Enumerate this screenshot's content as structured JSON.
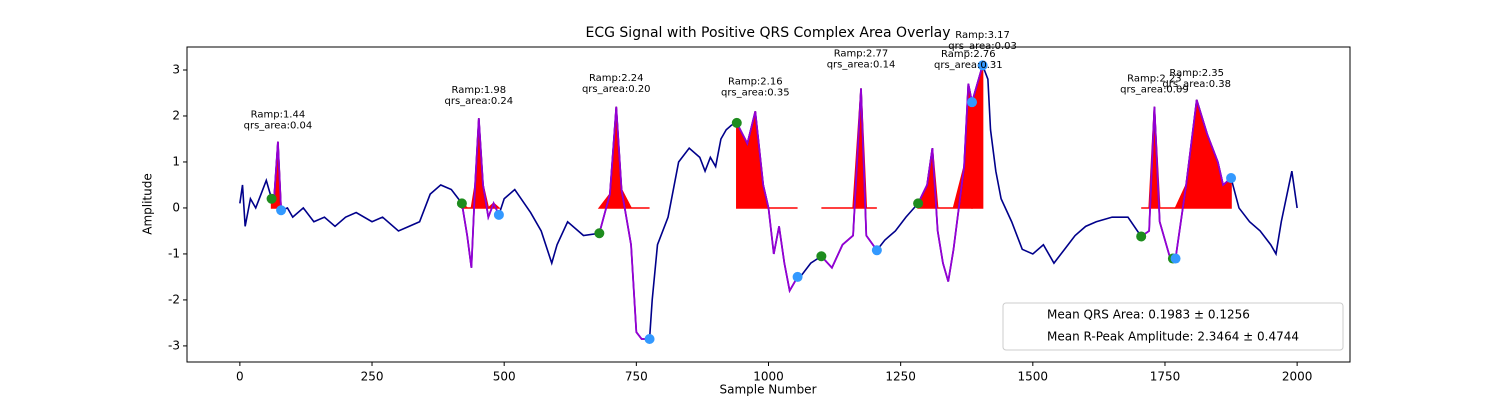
{
  "chart_data": {
    "type": "line",
    "title": "ECG Signal with Positive QRS Complex Area Overlay",
    "xlabel": "Sample Number",
    "ylabel": "Amplitude",
    "xlim": [
      -100,
      2100
    ],
    "ylim": [
      -3.35,
      3.5
    ],
    "xticks": [
      0,
      250,
      500,
      750,
      1000,
      1250,
      1500,
      1750,
      2000
    ],
    "yticks": [
      -3,
      -2,
      -1,
      0,
      1,
      2,
      3
    ],
    "color": "#00008b",
    "x": [
      0,
      5,
      10,
      20,
      30,
      40,
      50,
      60,
      65,
      72,
      78,
      90,
      100,
      120,
      140,
      160,
      180,
      200,
      220,
      250,
      270,
      300,
      320,
      340,
      360,
      380,
      400,
      420,
      430,
      438,
      445,
      452,
      460,
      470,
      480,
      490,
      500,
      520,
      550,
      570,
      590,
      600,
      620,
      650,
      680,
      700,
      712,
      722,
      740,
      750,
      760,
      775,
      780,
      790,
      810,
      830,
      850,
      870,
      880,
      890,
      900,
      910,
      920,
      930,
      940,
      960,
      975,
      990,
      1000,
      1010,
      1020,
      1030,
      1040,
      1055,
      1060,
      1080,
      1100,
      1120,
      1140,
      1160,
      1175,
      1185,
      1205,
      1220,
      1240,
      1260,
      1283,
      1300,
      1310,
      1320,
      1330,
      1340,
      1350,
      1370,
      1378,
      1385,
      1395,
      1405,
      1415,
      1420,
      1430,
      1440,
      1460,
      1480,
      1500,
      1520,
      1540,
      1560,
      1580,
      1600,
      1620,
      1650,
      1680,
      1705,
      1720,
      1730,
      1740,
      1760,
      1770,
      1790,
      1810,
      1830,
      1850,
      1860,
      1875,
      1890,
      1910,
      1930,
      1950,
      1960,
      1970,
      1990,
      2000
    ],
    "values": [
      0.1,
      0.5,
      -0.4,
      0.2,
      0.0,
      0.3,
      0.6,
      0.2,
      0.25,
      1.44,
      -0.05,
      0.0,
      -0.2,
      0.0,
      -0.3,
      -0.2,
      -0.4,
      -0.2,
      -0.1,
      -0.3,
      -0.2,
      -0.5,
      -0.4,
      -0.3,
      0.3,
      0.5,
      0.4,
      0.1,
      -0.6,
      -1.3,
      0.5,
      1.95,
      0.5,
      -0.2,
      0.1,
      -0.15,
      0.2,
      0.4,
      -0.1,
      -0.5,
      -1.2,
      -0.8,
      -0.3,
      -0.6,
      -0.55,
      0.3,
      2.2,
      0.4,
      -0.8,
      -2.7,
      -2.85,
      -2.85,
      -2.0,
      -0.8,
      -0.2,
      1.0,
      1.3,
      1.1,
      0.8,
      1.1,
      0.9,
      1.5,
      1.7,
      1.8,
      1.85,
      1.4,
      2.1,
      0.5,
      0.0,
      -1.0,
      -0.4,
      -1.2,
      -1.8,
      -1.5,
      -1.5,
      -1.2,
      -1.05,
      -1.3,
      -0.8,
      -0.6,
      2.6,
      -0.6,
      -0.92,
      -0.7,
      -0.5,
      -0.2,
      0.1,
      0.5,
      1.3,
      -0.5,
      -1.2,
      -1.6,
      -0.9,
      0.9,
      2.7,
      2.3,
      2.7,
      3.1,
      2.8,
      1.7,
      0.8,
      0.2,
      -0.3,
      -0.9,
      -1.0,
      -0.8,
      -1.2,
      -0.9,
      -0.6,
      -0.4,
      -0.3,
      -0.2,
      -0.2,
      -0.62,
      -0.5,
      2.2,
      -0.3,
      -1.1,
      -1.1,
      0.5,
      2.35,
      1.6,
      1.0,
      0.5,
      0.65,
      0.0,
      -0.3,
      -0.5,
      -0.8,
      -1.0,
      -0.3,
      0.8,
      0.0
    ],
    "qrs_color": "#9400d3",
    "fill_color": "#ff0000",
    "qrs_segments": [
      [
        60,
        78
      ],
      [
        420,
        490
      ],
      [
        680,
        775
      ],
      [
        940,
        1055
      ],
      [
        1100,
        1205
      ],
      [
        1283,
        1385
      ],
      [
        1385,
        1405
      ],
      [
        1705,
        1770
      ],
      [
        1770,
        1875
      ]
    ],
    "onsets": {
      "color": "#1e8c1e",
      "x": [
        60,
        420,
        680,
        940,
        1100,
        1283,
        1705,
        1765
      ],
      "values": [
        0.2,
        0.1,
        -0.55,
        1.85,
        -1.05,
        0.1,
        -0.62,
        -1.1
      ]
    },
    "offsets": {
      "color": "#3399ff",
      "x": [
        78,
        490,
        775,
        1055,
        1205,
        1385,
        1405,
        1770,
        1875
      ],
      "values": [
        -0.05,
        -0.15,
        -2.85,
        -1.5,
        -0.92,
        2.3,
        3.1,
        -1.1,
        0.65
      ]
    },
    "annotations": [
      {
        "x": 72,
        "y": 1.44,
        "lines": [
          "Ramp:1.44",
          "qrs_area:0.04"
        ]
      },
      {
        "x": 452,
        "y": 1.98,
        "lines": [
          "Ramp:1.98",
          "qrs_area:0.24"
        ]
      },
      {
        "x": 712,
        "y": 2.24,
        "lines": [
          "Ramp:2.24",
          "qrs_area:0.20"
        ]
      },
      {
        "x": 975,
        "y": 2.16,
        "lines": [
          "Ramp:2.16",
          "qrs_area:0.35"
        ]
      },
      {
        "x": 1175,
        "y": 2.77,
        "lines": [
          "Ramp:2.77",
          "qrs_area:0.14"
        ]
      },
      {
        "x": 1378,
        "y": 2.76,
        "lines": [
          "Ramp:2.76",
          "qrs_area:0.31"
        ]
      },
      {
        "x": 1405,
        "y": 3.17,
        "lines": [
          "Ramp:3.17",
          "qrs_area:0.03"
        ]
      },
      {
        "x": 1730,
        "y": 2.23,
        "lines": [
          "Ramp:2.23",
          "qrs_area:0.09"
        ]
      },
      {
        "x": 1810,
        "y": 2.35,
        "lines": [
          "Ramp:2.35",
          "qrs_area:0.38"
        ]
      }
    ],
    "legend": [
      "Mean QRS Area: 0.1983 ± 0.1256",
      "Mean R-Peak Amplitude: 2.3464 ± 0.4744"
    ],
    "legend_position": "lower right"
  }
}
